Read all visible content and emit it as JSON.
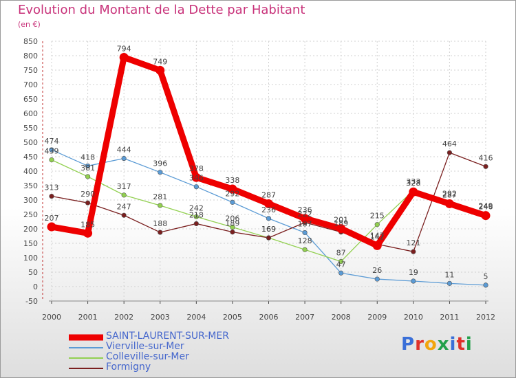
{
  "title": "Evolution du Montant de la Dette par Habitant",
  "subtitle": "(en €)",
  "logo": {
    "text": "Proxiti",
    "colors": [
      "#3a6fd8",
      "#e0302a",
      "#f2a50c",
      "#22a04a",
      "#3a6fd8",
      "#e0302a",
      "#22a04a"
    ]
  },
  "chart_data": {
    "type": "line",
    "title": "Evolution du Montant de la Dette par Habitant",
    "subtitle": "(en €)",
    "x": [
      "2000",
      "2001",
      "2002",
      "2003",
      "2004",
      "2005",
      "2006",
      "2007",
      "2008",
      "2009",
      "2010",
      "2011",
      "2012"
    ],
    "yticks": [
      -50,
      0,
      50,
      100,
      150,
      200,
      250,
      300,
      350,
      400,
      450,
      500,
      550,
      600,
      650,
      700,
      750,
      800,
      850
    ],
    "ylim": [
      -50,
      850
    ],
    "grid": true,
    "legend_position": "bottom-left",
    "series": [
      {
        "name": "SAINT-LAURENT-SUR-MER",
        "color": "#ee0000",
        "values": [
          207,
          185,
          794,
          749,
          378,
          338,
          287,
          236,
          201,
          142,
          328,
          287,
          246
        ]
      },
      {
        "name": "Vierville-sur-Mer",
        "color": "#5b9bd5",
        "values": [
          474,
          418,
          444,
          396,
          346,
          292,
          236,
          187,
          47,
          26,
          19,
          11,
          5
        ]
      },
      {
        "name": "Colleville-sur-Mer",
        "color": "#92d050",
        "values": [
          439,
          381,
          317,
          281,
          242,
          206,
          169,
          128,
          87,
          215,
          333,
          292,
          249
        ]
      },
      {
        "name": "Formigny",
        "color": "#7a1f1f",
        "values": [
          313,
          290,
          247,
          188,
          218,
          189,
          169,
          222,
          189,
          147,
          121,
          464,
          416
        ]
      }
    ]
  }
}
